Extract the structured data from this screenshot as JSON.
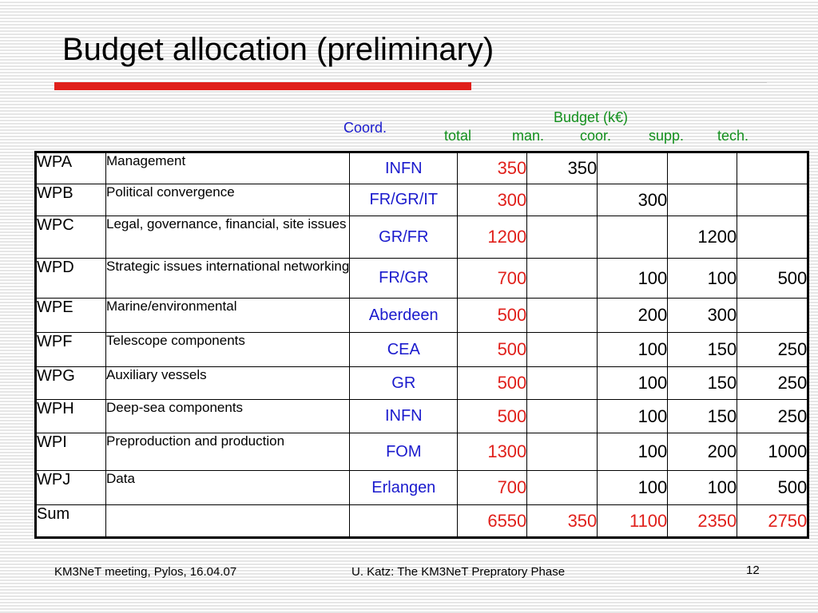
{
  "title": "Budget allocation (preliminary)",
  "headers": {
    "coord": "Coord.",
    "budget": "Budget (k€)",
    "total": "total",
    "man": "man.",
    "coor": "coor.",
    "supp": "supp.",
    "tech": "tech."
  },
  "rows": [
    {
      "wp": "WPA",
      "desc": "Management",
      "coord": "INFN",
      "total": "350",
      "man": "350",
      "coor": "",
      "supp": "",
      "tech": ""
    },
    {
      "wp": "WPB",
      "desc": "Political convergence",
      "coord": "FR/GR/IT",
      "total": "300",
      "man": "",
      "coor": "300",
      "supp": "",
      "tech": ""
    },
    {
      "wp": "WPC",
      "desc": "Legal, governance, financial, site issues",
      "coord": "GR/FR",
      "total": "1200",
      "man": "",
      "coor": "",
      "supp": "1200",
      "tech": ""
    },
    {
      "wp": "WPD",
      "desc": "Strategic issues international networking",
      "coord": "FR/GR",
      "total": "700",
      "man": "",
      "coor": "100",
      "supp": "100",
      "tech": "500"
    },
    {
      "wp": "WPE",
      "desc": "Marine/environmental",
      "coord": "Aberdeen",
      "total": "500",
      "man": "",
      "coor": "200",
      "supp": "300",
      "tech": ""
    },
    {
      "wp": "WPF",
      "desc": "Telescope components",
      "coord": "CEA",
      "total": "500",
      "man": "",
      "coor": "100",
      "supp": "150",
      "tech": "250"
    },
    {
      "wp": "WPG",
      "desc": "Auxiliary vessels",
      "coord": "GR",
      "total": "500",
      "man": "",
      "coor": "100",
      "supp": "150",
      "tech": "250"
    },
    {
      "wp": "WPH",
      "desc": "Deep-sea components",
      "coord": "INFN",
      "total": "500",
      "man": "",
      "coor": "100",
      "supp": "150",
      "tech": "250"
    },
    {
      "wp": "WPI",
      "desc": "Preproduction and production",
      "coord": "FOM",
      "total": "1300",
      "man": "",
      "coor": "100",
      "supp": "200",
      "tech": "1000"
    },
    {
      "wp": "WPJ",
      "desc": "Data",
      "coord": "Erlangen",
      "total": "700",
      "man": "",
      "coor": "100",
      "supp": "100",
      "tech": "500"
    }
  ],
  "sum": {
    "wp": "Sum",
    "desc": "",
    "coord": "",
    "total": "6550",
    "man": "350",
    "coor": "1100",
    "supp": "2350",
    "tech": "2750"
  },
  "footer": {
    "left": "KM3NeT meeting, Pylos, 16.04.07",
    "center": "U. Katz: The KM3NeT Prepratory Phase",
    "page": "12"
  }
}
